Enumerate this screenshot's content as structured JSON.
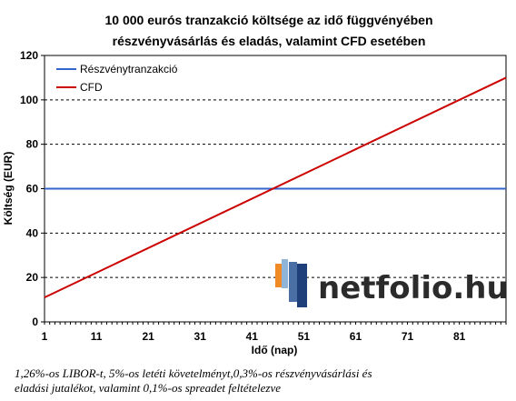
{
  "chart_data": {
    "type": "line",
    "title_lines": [
      "10 000 eurós tranzakció költsége az idő függvényében",
      "részvényvásárlás és eladás, valamint CFD esetében"
    ],
    "xlabel": "Idő (nap)",
    "ylabel": "Költség (EUR)",
    "xlim": [
      1,
      90
    ],
    "ylim": [
      0,
      120
    ],
    "x_ticks": [
      1,
      11,
      21,
      31,
      41,
      51,
      61,
      71,
      81
    ],
    "y_ticks": [
      0,
      20,
      40,
      60,
      80,
      100,
      120
    ],
    "grid": "horizontal-dashed",
    "legend_position": "top-left",
    "series": [
      {
        "name": "Részvénytranzakció",
        "color": "#3366cc",
        "x": [
          1,
          90
        ],
        "y": [
          60,
          60
        ]
      },
      {
        "name": "CFD",
        "color": "#cc0000",
        "x": [
          1,
          90
        ],
        "y": [
          11,
          110
        ]
      }
    ]
  },
  "logo": {
    "text": "netfolio.hu"
  },
  "footnote": {
    "line1": "1,26%-os LIBOR-t, 5%-os letéti követelményt,0,3%-os részvényvásárlási és",
    "line2": "eladási jutalékot, valamint 0,1%-os spreadet feltételezve"
  }
}
